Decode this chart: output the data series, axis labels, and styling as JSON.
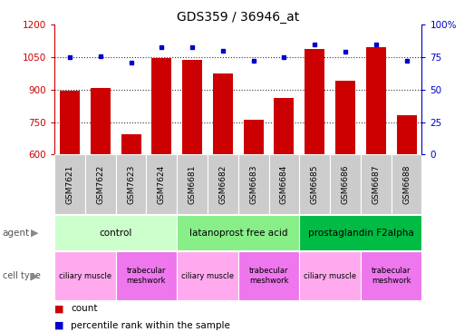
{
  "title": "GDS359 / 36946_at",
  "samples": [
    "GSM7621",
    "GSM7622",
    "GSM7623",
    "GSM7624",
    "GSM6681",
    "GSM6682",
    "GSM6683",
    "GSM6684",
    "GSM6685",
    "GSM6686",
    "GSM6687",
    "GSM6688"
  ],
  "counts": [
    893,
    908,
    693,
    1045,
    1040,
    975,
    762,
    860,
    1090,
    940,
    1095,
    780
  ],
  "percentiles": [
    75,
    76,
    71,
    83,
    83,
    80,
    72,
    75,
    85,
    79,
    85,
    72
  ],
  "ylim_left": [
    600,
    1200
  ],
  "ylim_right": [
    0,
    100
  ],
  "yticks_left": [
    600,
    750,
    900,
    1050,
    1200
  ],
  "yticks_right": [
    0,
    25,
    50,
    75,
    100
  ],
  "bar_color": "#cc0000",
  "dot_color": "#0000cc",
  "title_fontsize": 10,
  "agents": [
    {
      "label": "control",
      "start": 0,
      "end": 4
    },
    {
      "label": "latanoprost free acid",
      "start": 4,
      "end": 8
    },
    {
      "label": "prostaglandin F2alpha",
      "start": 8,
      "end": 12
    }
  ],
  "agent_colors": [
    "#ccffcc",
    "#88ee88",
    "#00bb44"
  ],
  "cell_types": [
    {
      "label": "ciliary muscle",
      "start": 0,
      "end": 2
    },
    {
      "label": "trabecular\nmeshwork",
      "start": 2,
      "end": 4
    },
    {
      "label": "ciliary muscle",
      "start": 4,
      "end": 6
    },
    {
      "label": "trabecular\nmeshwork",
      "start": 6,
      "end": 8
    },
    {
      "label": "ciliary muscle",
      "start": 8,
      "end": 10
    },
    {
      "label": "trabecular\nmeshwork",
      "start": 10,
      "end": 12
    }
  ],
  "ct_colors": [
    "#ffaaee",
    "#ee77ee"
  ],
  "sample_bg": "#cccccc",
  "legend_count_color": "#cc0000",
  "legend_dot_color": "#0000cc",
  "hline_color": "#333333",
  "hline_style": ":"
}
